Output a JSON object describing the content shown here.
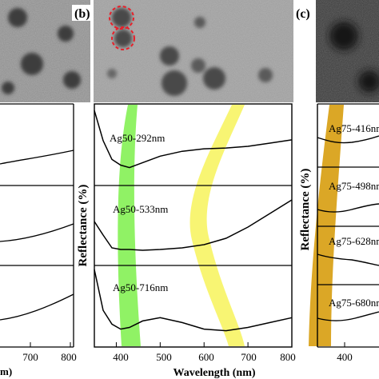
{
  "panels": {
    "b_label": "(b)",
    "c_label": "(c)"
  },
  "axes": {
    "ylabel": "Reflectance (%)",
    "xlabel": "Wavelength (nm)",
    "left_tick_labels": [
      "700",
      "800"
    ],
    "left_xlabel_fragment": "m)",
    "middle_tick_labels": [
      "400",
      "500",
      "600",
      "700",
      "800"
    ],
    "right_tick_labels": [
      "400"
    ]
  },
  "curves": {
    "b": [
      "Ag50-292nm",
      "Ag50-533nm",
      "Ag50-716nm"
    ],
    "c": [
      "Ag75-416nm",
      "Ag75-498nm",
      "Ag75-628nm",
      "Ag75-680nm"
    ]
  },
  "colors": {
    "green_band": "#7cf04a",
    "yellow_band": "#f7f35a",
    "orange_band": "#d9a21a",
    "particle_outline": "#e8202a"
  },
  "chart_data": [
    {
      "type": "line",
      "panel": "(b)",
      "xlabel": "Wavelength (nm)",
      "ylabel": "Reflectance (%)",
      "xlim": [
        350,
        800
      ],
      "x_ticks": [
        400,
        500,
        600,
        700,
        800
      ],
      "series": [
        {
          "name": "Ag50-292nm",
          "x": [
            350,
            370,
            390,
            410,
            430,
            460,
            500,
            550,
            600,
            650,
            700,
            750,
            800
          ],
          "values": [
            0.92,
            0.55,
            0.32,
            0.25,
            0.22,
            0.28,
            0.36,
            0.42,
            0.45,
            0.46,
            0.48,
            0.52,
            0.56
          ]
        },
        {
          "name": "Ag50-533nm",
          "x": [
            350,
            370,
            390,
            410,
            430,
            460,
            500,
            550,
            600,
            650,
            700,
            750,
            800
          ],
          "values": [
            0.55,
            0.38,
            0.22,
            0.2,
            0.2,
            0.19,
            0.2,
            0.22,
            0.26,
            0.34,
            0.48,
            0.65,
            0.82
          ]
        },
        {
          "name": "Ag50-716nm",
          "x": [
            350,
            370,
            390,
            410,
            430,
            460,
            500,
            550,
            600,
            650,
            700,
            750,
            800
          ],
          "values": [
            0.95,
            0.45,
            0.28,
            0.22,
            0.24,
            0.32,
            0.36,
            0.3,
            0.22,
            0.2,
            0.24,
            0.3,
            0.36
          ]
        }
      ]
    },
    {
      "type": "line",
      "panel": "(c)",
      "ylabel": "Reflectance (%)",
      "x_ticks": [
        400
      ],
      "series": [
        {
          "name": "Ag75-416nm"
        },
        {
          "name": "Ag75-498nm"
        },
        {
          "name": "Ag75-628nm"
        },
        {
          "name": "Ag75-680nm"
        }
      ]
    }
  ]
}
